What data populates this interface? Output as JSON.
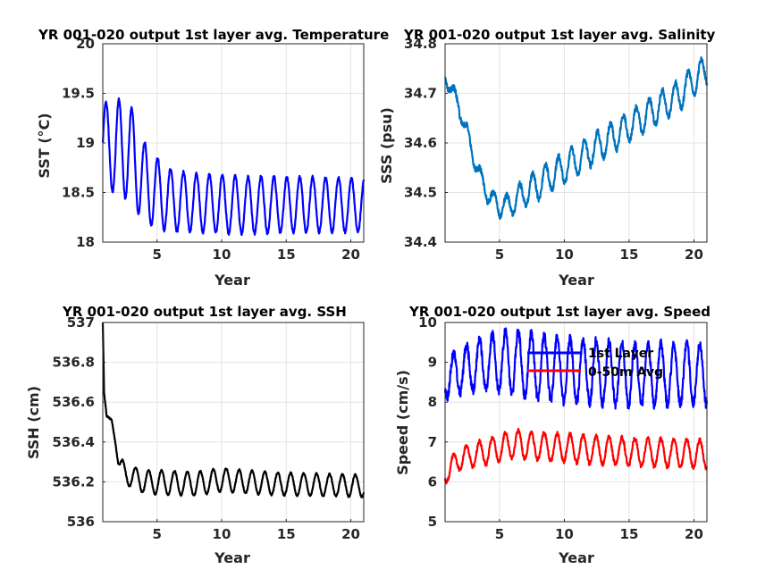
{
  "chart_data": [
    {
      "type": "line",
      "title": "YR 001-020 output 1st layer avg. Temperature",
      "xlabel": "Year",
      "ylabel": "SST (°C)",
      "xlim": [
        0.8,
        21
      ],
      "ylim": [
        18,
        20
      ],
      "xticks": [
        5,
        10,
        15,
        20
      ],
      "yticks": [
        18,
        18.5,
        19,
        19.5,
        20
      ],
      "ytick_labels": [
        "18",
        "18.5",
        "19",
        "19.5",
        "20"
      ],
      "grid": true,
      "series": [
        {
          "color": "#0000ff",
          "signal": {
            "kind": "seasonal",
            "start": 0.8,
            "end": 21,
            "step": 0.02,
            "baseline": [
              [
                0.8,
                19.0
              ],
              [
                2.0,
                18.95
              ],
              [
                3.0,
                18.9
              ],
              [
                4.0,
                18.6
              ],
              [
                5.0,
                18.5
              ],
              [
                6.0,
                18.42
              ],
              [
                8.0,
                18.4
              ],
              [
                12.0,
                18.37
              ],
              [
                16.0,
                18.38
              ],
              [
                21.0,
                18.37
              ]
            ],
            "amplitude": [
              [
                0.8,
                0.4
              ],
              [
                2.0,
                0.5
              ],
              [
                3.5,
                0.45
              ],
              [
                5.0,
                0.35
              ],
              [
                7.0,
                0.3
              ],
              [
                21.0,
                0.27
              ]
            ],
            "phase": 0.8,
            "noise": 0.015
          }
        }
      ]
    },
    {
      "type": "line",
      "title": "YR 001-020 output 1st layer avg. Salinity",
      "xlabel": "Year",
      "ylabel": "SSS (psu)",
      "xlim": [
        0.8,
        21
      ],
      "ylim": [
        34.4,
        34.8
      ],
      "xticks": [
        5,
        10,
        15,
        20
      ],
      "yticks": [
        34.4,
        34.5,
        34.6,
        34.7,
        34.8
      ],
      "ytick_labels": [
        "34.4",
        "34.5",
        "34.6",
        "34.7",
        "34.8"
      ],
      "grid": true,
      "series": [
        {
          "color": "#0072bd",
          "signal": {
            "kind": "seasonal",
            "start": 0.8,
            "end": 21,
            "step": 0.02,
            "baseline": [
              [
                0.8,
                34.73
              ],
              [
                1.5,
                34.7
              ],
              [
                2.5,
                34.62
              ],
              [
                3.5,
                34.53
              ],
              [
                4.5,
                34.48
              ],
              [
                5.5,
                34.47
              ],
              [
                7.0,
                34.5
              ],
              [
                10.0,
                34.55
              ],
              [
                13.0,
                34.6
              ],
              [
                16.0,
                34.65
              ],
              [
                19.0,
                34.7
              ],
              [
                21.0,
                34.75
              ]
            ],
            "amplitude": [
              [
                0.8,
                0.01
              ],
              [
                4.0,
                0.02
              ],
              [
                8.0,
                0.03
              ],
              [
                21.0,
                0.03
              ]
            ],
            "phase": 0.3,
            "noise": 0.006
          }
        }
      ]
    },
    {
      "type": "line",
      "title": "YR 001-020 output 1st layer avg. SSH",
      "xlabel": "Year",
      "ylabel": "SSH (cm)",
      "xlim": [
        0.8,
        21
      ],
      "ylim": [
        536,
        537
      ],
      "xticks": [
        5,
        10,
        15,
        20
      ],
      "yticks": [
        536,
        536.2,
        536.4,
        536.6,
        536.8,
        537
      ],
      "ytick_labels": [
        "536",
        "536.2",
        "536.4",
        "536.6",
        "536.8",
        "537"
      ],
      "grid": true,
      "series": [
        {
          "color": "#000000",
          "signal": {
            "kind": "seasonal",
            "start": 0.8,
            "end": 21,
            "step": 0.02,
            "baseline": [
              [
                0.8,
                537.0
              ],
              [
                0.9,
                536.65
              ],
              [
                1.1,
                536.53
              ],
              [
                1.5,
                536.51
              ],
              [
                2.0,
                536.3
              ],
              [
                2.5,
                536.24
              ],
              [
                4.0,
                536.2
              ],
              [
                8.0,
                536.19
              ],
              [
                10.0,
                536.21
              ],
              [
                14.0,
                536.19
              ],
              [
                21.0,
                536.18
              ]
            ],
            "amplitude": [
              [
                0.8,
                0.0
              ],
              [
                1.8,
                0.0
              ],
              [
                2.3,
                0.05
              ],
              [
                5.0,
                0.06
              ],
              [
                21.0,
                0.055
              ]
            ],
            "phase": 0.1,
            "noise": 0.004
          }
        }
      ]
    },
    {
      "type": "line",
      "title": "YR 001-020 output 1st layer avg. Speed",
      "xlabel": "Year",
      "ylabel": "Speed (cm/s)",
      "xlim": [
        0.8,
        21
      ],
      "ylim": [
        5,
        10
      ],
      "xticks": [
        5,
        10,
        15,
        20
      ],
      "yticks": [
        5,
        6,
        7,
        8,
        9,
        10
      ],
      "ytick_labels": [
        "5",
        "6",
        "7",
        "8",
        "9",
        "10"
      ],
      "grid": true,
      "legend": {
        "placement": "top-center"
      },
      "series": [
        {
          "name": "1st Layer",
          "color": "#0000ff",
          "signal": {
            "kind": "seasonal",
            "start": 0.8,
            "end": 21,
            "step": 0.02,
            "baseline": [
              [
                0.8,
                8.6
              ],
              [
                2.0,
                8.8
              ],
              [
                4.0,
                9.0
              ],
              [
                6.0,
                9.0
              ],
              [
                10.0,
                8.8
              ],
              [
                15.0,
                8.7
              ],
              [
                21.0,
                8.7
              ]
            ],
            "amplitude": [
              [
                0.8,
                0.5
              ],
              [
                3.0,
                0.6
              ],
              [
                6.0,
                0.8
              ],
              [
                10.0,
                0.8
              ],
              [
                21.0,
                0.75
              ]
            ],
            "phase": 0.2,
            "noise": 0.12
          }
        },
        {
          "name": "0-50m Avg",
          "color": "#ff0000",
          "signal": {
            "kind": "seasonal",
            "start": 0.8,
            "end": 21,
            "step": 0.02,
            "baseline": [
              [
                0.8,
                6.2
              ],
              [
                2.0,
                6.6
              ],
              [
                4.0,
                6.75
              ],
              [
                6.0,
                6.95
              ],
              [
                10.0,
                6.85
              ],
              [
                15.0,
                6.75
              ],
              [
                21.0,
                6.7
              ]
            ],
            "amplitude": [
              [
                0.8,
                0.25
              ],
              [
                3.0,
                0.3
              ],
              [
                6.0,
                0.35
              ],
              [
                21.0,
                0.35
              ]
            ],
            "phase": 0.2,
            "noise": 0.05
          }
        }
      ]
    }
  ]
}
